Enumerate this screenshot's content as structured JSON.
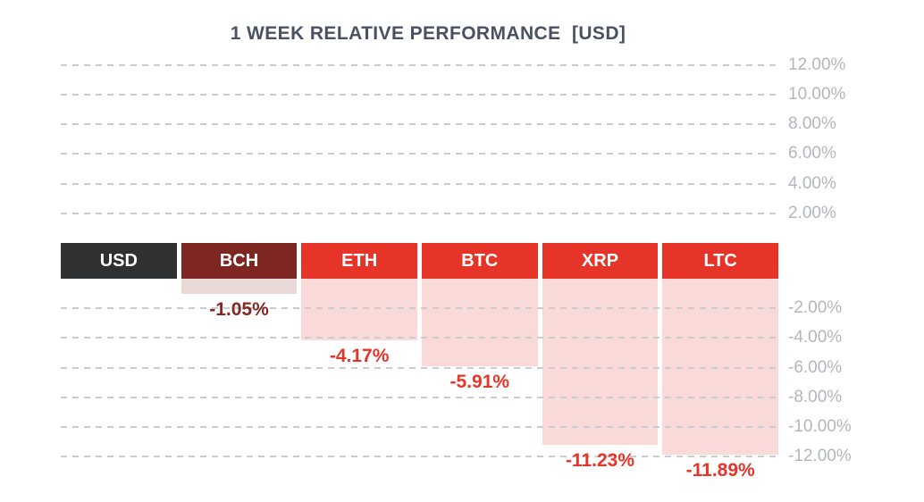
{
  "palette": {
    "background": "#ffffff",
    "title_text": "#4a5163",
    "axis_text": "#b2b6bd",
    "gridline": "#c9ccd0",
    "usd_dark": "#2e3032",
    "bch_maroon": "#7d2622",
    "negative_red": "#e63429"
  },
  "chart_data": {
    "type": "bar",
    "title": "1 WEEK RELATIVE PERFORMANCE  [USD]",
    "categories": [
      "USD",
      "BCH",
      "ETH",
      "BTC",
      "XRP",
      "LTC"
    ],
    "values": [
      0,
      -1.05,
      -4.17,
      -5.91,
      -11.23,
      -11.89
    ],
    "unit": "%",
    "ylim": [
      -12,
      12
    ],
    "ytick_step": 2,
    "grid": "horizontal-dashed",
    "legend_position": "none",
    "baseline": "zero-at-header-band",
    "columns": [
      {
        "label": "USD",
        "value": 0,
        "value_label": null,
        "header_color": "#2e3032",
        "label_color": null
      },
      {
        "label": "BCH",
        "value": -1.05,
        "value_label": "-1.05%",
        "header_color": "#7d2622",
        "label_color": "#832823"
      },
      {
        "label": "ETH",
        "value": -4.17,
        "value_label": "-4.17%",
        "header_color": "#e63429",
        "label_color": "#e63429"
      },
      {
        "label": "BTC",
        "value": -5.91,
        "value_label": "-5.91%",
        "header_color": "#e63429",
        "label_color": "#e63429"
      },
      {
        "label": "XRP",
        "value": -11.23,
        "value_label": "-11.23%",
        "header_color": "#e63429",
        "label_color": "#e63429"
      },
      {
        "label": "LTC",
        "value": -11.89,
        "value_label": "-11.89%",
        "header_color": "#e63429",
        "label_color": "#e63429"
      }
    ],
    "yticks": [
      {
        "value": 12,
        "label": "12.00%"
      },
      {
        "value": 10,
        "label": "10.00%"
      },
      {
        "value": 8,
        "label": "8.00%"
      },
      {
        "value": 6,
        "label": "6.00%"
      },
      {
        "value": 4,
        "label": "4.00%"
      },
      {
        "value": 2,
        "label": "2.00%"
      },
      {
        "value": -2,
        "label": "-2.00%"
      },
      {
        "value": -4,
        "label": "-4.00%"
      },
      {
        "value": -6,
        "label": "-6.00%"
      },
      {
        "value": -8,
        "label": "-8.00%"
      },
      {
        "value": -10,
        "label": "-10.00%"
      },
      {
        "value": -12,
        "label": "-12.00%"
      }
    ]
  }
}
